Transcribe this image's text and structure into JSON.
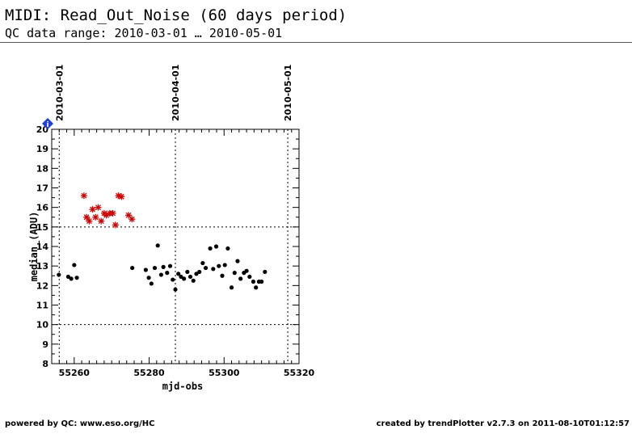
{
  "header": {
    "title": "MIDI: Read_Out_Noise (60 days period)",
    "subtitle": "QC data range: 2010-03-01 … 2010-05-01"
  },
  "footer": {
    "left": "powered by QC: www.eso.org/HC",
    "right": "created by trendPlotter v2.7.3 on 2011-08-10T01:12:57"
  },
  "info_icon": "info-icon",
  "colors": {
    "normal": "#000000",
    "outlier": "#cc0000",
    "info": "#1f3fd8"
  },
  "chart_data": {
    "type": "scatter",
    "xlabel": "mjd-obs",
    "ylabel": "median_(ADU)",
    "xlim": [
      55254,
      55320
    ],
    "ylim": [
      8,
      20
    ],
    "x_ticks": [
      55260,
      55280,
      55300,
      55320
    ],
    "y_ticks": [
      8,
      9,
      10,
      11,
      12,
      13,
      14,
      15,
      16,
      17,
      18,
      19,
      20
    ],
    "top_axis_labels": [
      {
        "x": 55256,
        "label": "2010-03-01"
      },
      {
        "x": 55287,
        "label": "2010-04-01"
      },
      {
        "x": 55317,
        "label": "2010-05-01"
      }
    ],
    "reference_lines_y": [
      10,
      15
    ],
    "series": [
      {
        "marker": "dot",
        "points": [
          [
            55255.9,
            12.55
          ],
          [
            55258.4,
            12.45
          ],
          [
            55259.2,
            12.35
          ],
          [
            55260.0,
            13.05
          ],
          [
            55260.7,
            12.4
          ],
          [
            55275.5,
            12.9
          ],
          [
            55279.1,
            12.8
          ],
          [
            55279.9,
            12.4
          ],
          [
            55280.6,
            12.1
          ],
          [
            55281.5,
            12.9
          ],
          [
            55282.3,
            14.05
          ],
          [
            55283.2,
            12.55
          ],
          [
            55283.8,
            12.95
          ],
          [
            55284.8,
            12.65
          ],
          [
            55285.6,
            13.0
          ],
          [
            55286.3,
            12.3
          ],
          [
            55287.0,
            11.8
          ],
          [
            55287.8,
            12.6
          ],
          [
            55288.5,
            12.45
          ],
          [
            55289.3,
            12.35
          ],
          [
            55290.2,
            12.7
          ],
          [
            55291.0,
            12.45
          ],
          [
            55291.8,
            12.25
          ],
          [
            55292.6,
            12.6
          ],
          [
            55293.4,
            12.7
          ],
          [
            55294.3,
            13.15
          ],
          [
            55295.1,
            12.9
          ],
          [
            55296.3,
            13.9
          ],
          [
            55297.1,
            12.85
          ],
          [
            55297.9,
            14.0
          ],
          [
            55298.6,
            13.0
          ],
          [
            55299.5,
            12.5
          ],
          [
            55300.2,
            13.05
          ],
          [
            55301.0,
            13.9
          ],
          [
            55302.0,
            11.9
          ],
          [
            55302.8,
            12.65
          ],
          [
            55303.6,
            13.25
          ],
          [
            55304.4,
            12.35
          ],
          [
            55305.3,
            12.65
          ],
          [
            55306.0,
            12.75
          ],
          [
            55306.8,
            12.45
          ],
          [
            55307.8,
            12.2
          ],
          [
            55308.5,
            11.9
          ],
          [
            55309.3,
            12.2
          ],
          [
            55310.0,
            12.2
          ],
          [
            55310.9,
            12.7
          ]
        ]
      },
      {
        "marker": "star",
        "points": [
          [
            55262.6,
            16.6
          ],
          [
            55263.3,
            15.5
          ],
          [
            55264.0,
            15.3
          ],
          [
            55264.9,
            15.9
          ],
          [
            55265.7,
            15.5
          ],
          [
            55266.4,
            16.0
          ],
          [
            55267.2,
            15.3
          ],
          [
            55268.0,
            15.7
          ],
          [
            55268.6,
            15.6
          ],
          [
            55269.5,
            15.7
          ],
          [
            55270.3,
            15.7
          ],
          [
            55271.0,
            15.1
          ],
          [
            55271.8,
            16.6
          ],
          [
            55272.6,
            16.55
          ],
          [
            55274.5,
            15.6
          ],
          [
            55275.4,
            15.4
          ]
        ]
      }
    ]
  }
}
